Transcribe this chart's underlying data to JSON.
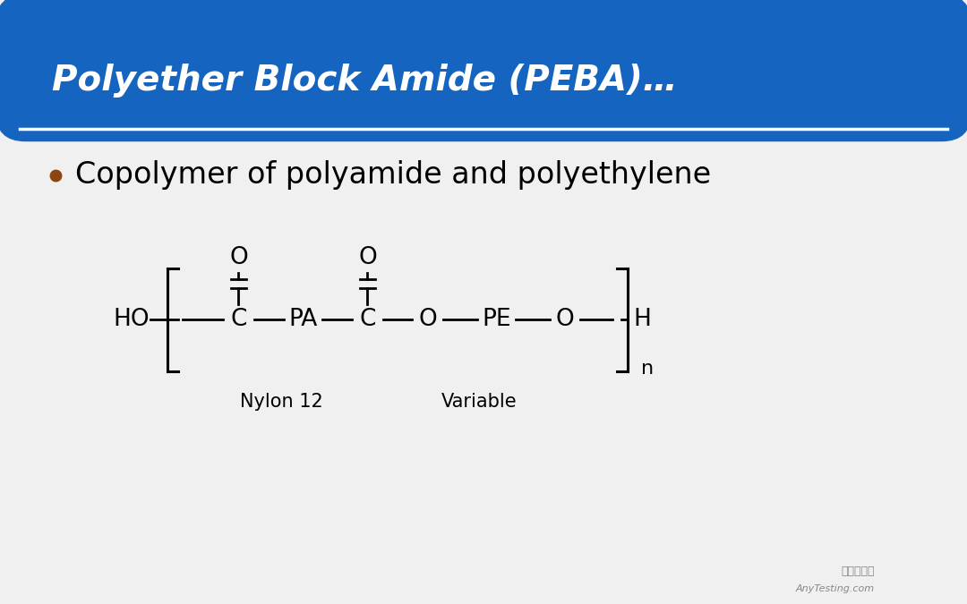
{
  "title": "Polyether Block Amide (PEBA)…",
  "title_color": "#FFFFFF",
  "header_bg_color": "#1565C0",
  "body_bg_color": "#F0F0F0",
  "bullet_text": "Copolymer of polyamide and polyethylene",
  "bullet_color": "#8B4513",
  "bullet_text_color": "#000000",
  "nylon_label": "Nylon 12",
  "variable_label": "Variable",
  "subscript_n": "n",
  "line_color": "#000000",
  "text_color": "#000000",
  "watermark1": "嘉峄检测网",
  "watermark2": "AnyTesting.com"
}
